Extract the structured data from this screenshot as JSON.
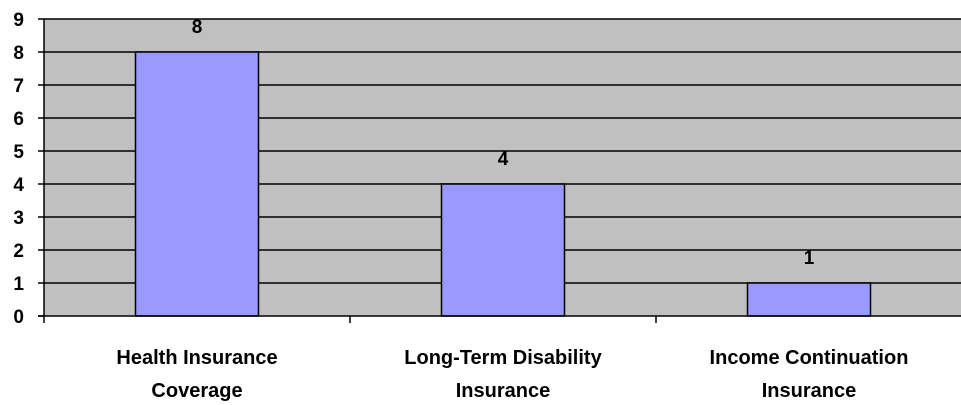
{
  "chart_data": {
    "type": "bar",
    "categories": [
      [
        "Health Insurance",
        "Coverage"
      ],
      [
        "Long-Term Disability",
        "Insurance"
      ],
      [
        "Income Continuation",
        "Insurance"
      ]
    ],
    "values": [
      8,
      4,
      1
    ],
    "data_labels": [
      "8",
      "4",
      "1"
    ],
    "ylim": [
      0,
      9
    ],
    "yticks": [
      "0",
      "1",
      "2",
      "3",
      "4",
      "5",
      "6",
      "7",
      "8",
      "9"
    ],
    "grid": true,
    "legend": "none",
    "title": "",
    "xlabel": "",
    "ylabel": "",
    "colors": {
      "plot_background": "#c0c0c0",
      "bar_fill": "#9999ff",
      "bar_stroke": "#000000",
      "gridline": "#000000",
      "axis": "#000000"
    }
  }
}
